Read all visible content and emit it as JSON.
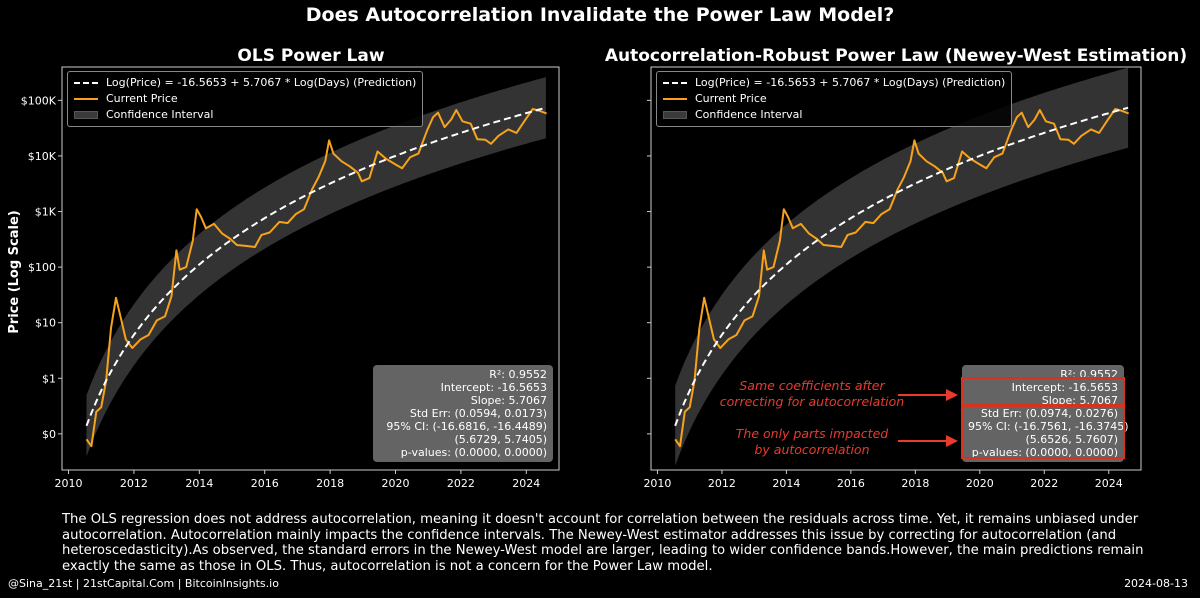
{
  "suptitle": "Does Autocorrelation Invalidate the Power Law Model?",
  "y_axis_label": "Price (Log Scale)",
  "legend": {
    "prediction": "Log(Price) = -16.5653 + 5.7067 * Log(Days) (Prediction)",
    "price": "Current Price",
    "ci": "Confidence Interval"
  },
  "colors": {
    "price": "#f7a21b",
    "prediction": "#ffffff",
    "ci": "#3c3c3c",
    "annotation": "#e83b2e"
  },
  "chart_data": [
    {
      "type": "line",
      "title": "OLS Power Law",
      "xlabel": "",
      "ylabel": "Price (Log Scale)",
      "x_ticks": [
        "2010",
        "2012",
        "2014",
        "2016",
        "2018",
        "2020",
        "2022",
        "2024"
      ],
      "y_ticks": [
        "$0",
        "$1",
        "$10",
        "$100",
        "$1K",
        "$10K",
        "$100K"
      ],
      "y_tick_values": [
        0.1,
        1,
        10,
        100,
        1000,
        10000,
        100000
      ],
      "xlim": [
        2009.8,
        2025.0
      ],
      "ylim_log10": [
        -1.65,
        5.6
      ],
      "ci_halfwidth_log10": 0.55,
      "series": [
        {
          "name": "Current Price",
          "points": [
            [
              2010.55,
              0.08
            ],
            [
              2010.7,
              0.06
            ],
            [
              2010.85,
              0.25
            ],
            [
              2011.0,
              0.3
            ],
            [
              2011.15,
              0.9
            ],
            [
              2011.3,
              8.0
            ],
            [
              2011.45,
              28
            ],
            [
              2011.6,
              12
            ],
            [
              2011.75,
              5
            ],
            [
              2011.95,
              3.5
            ],
            [
              2012.2,
              5
            ],
            [
              2012.45,
              6
            ],
            [
              2012.7,
              11
            ],
            [
              2012.95,
              13
            ],
            [
              2013.15,
              30
            ],
            [
              2013.3,
              200
            ],
            [
              2013.4,
              90
            ],
            [
              2013.6,
              100
            ],
            [
              2013.8,
              300
            ],
            [
              2013.92,
              1100
            ],
            [
              2014.05,
              800
            ],
            [
              2014.2,
              500
            ],
            [
              2014.45,
              600
            ],
            [
              2014.7,
              400
            ],
            [
              2014.95,
              320
            ],
            [
              2015.15,
              250
            ],
            [
              2015.45,
              240
            ],
            [
              2015.7,
              230
            ],
            [
              2015.9,
              380
            ],
            [
              2016.15,
              420
            ],
            [
              2016.45,
              650
            ],
            [
              2016.7,
              620
            ],
            [
              2016.95,
              900
            ],
            [
              2017.2,
              1100
            ],
            [
              2017.45,
              2500
            ],
            [
              2017.65,
              4200
            ],
            [
              2017.85,
              8000
            ],
            [
              2017.97,
              19000
            ],
            [
              2018.1,
              11000
            ],
            [
              2018.35,
              8000
            ],
            [
              2018.6,
              6500
            ],
            [
              2018.85,
              5000
            ],
            [
              2018.97,
              3500
            ],
            [
              2019.2,
              4000
            ],
            [
              2019.45,
              12000
            ],
            [
              2019.7,
              9000
            ],
            [
              2019.97,
              7200
            ],
            [
              2020.2,
              6000
            ],
            [
              2020.45,
              9500
            ],
            [
              2020.7,
              11000
            ],
            [
              2020.97,
              29000
            ],
            [
              2021.15,
              50000
            ],
            [
              2021.3,
              60000
            ],
            [
              2021.5,
              33000
            ],
            [
              2021.7,
              45000
            ],
            [
              2021.86,
              67000
            ],
            [
              2022.05,
              42000
            ],
            [
              2022.3,
              38000
            ],
            [
              2022.5,
              20000
            ],
            [
              2022.75,
              19500
            ],
            [
              2022.92,
              16500
            ],
            [
              2023.15,
              23000
            ],
            [
              2023.45,
              30000
            ],
            [
              2023.7,
              26000
            ],
            [
              2023.95,
              43000
            ],
            [
              2024.2,
              70000
            ],
            [
              2024.4,
              65000
            ],
            [
              2024.62,
              58000
            ]
          ]
        },
        {
          "name": "Prediction",
          "intercept": -16.5653,
          "slope": 5.7067,
          "genesis": 2009.0,
          "x_start": 2010.55,
          "x_end": 2024.62
        }
      ],
      "stats": {
        "r2": "R²: 0.9552",
        "intercept": "Intercept: -16.5653",
        "slope": "Slope: 5.7067",
        "std_err": "Std Err: (0.0594, 0.0173)",
        "ci95": "95% CI: (-16.6816, -16.4489)",
        "ci95b": "(5.6729, 5.7405)",
        "pvalues": "p-values: (0.0000, 0.0000)"
      }
    },
    {
      "type": "line",
      "title": "Autocorrelation-Robust Power Law (Newey-West Estimation)",
      "xlabel": "",
      "x_ticks": [
        "2010",
        "2012",
        "2014",
        "2016",
        "2018",
        "2020",
        "2022",
        "2024"
      ],
      "xlim": [
        2009.8,
        2025.0
      ],
      "ylim_log10": [
        -1.65,
        5.6
      ],
      "ci_halfwidth_log10": 0.72,
      "series": [
        {
          "name": "Current Price",
          "same_as_panel": 0
        },
        {
          "name": "Prediction",
          "intercept": -16.5653,
          "slope": 5.7067,
          "genesis": 2009.0,
          "x_start": 2010.55,
          "x_end": 2024.62
        }
      ],
      "stats": {
        "r2": "R²: 0.9552",
        "intercept": "Intercept: -16.5653",
        "slope": "Slope: 5.7067",
        "std_err": "Std Err: (0.0974, 0.0276)",
        "ci95": "95% CI: (-16.7561, -16.3745)",
        "ci95b": "(5.6526, 5.7607)",
        "pvalues": "p-values: (0.0000, 0.0000)"
      },
      "annotations": {
        "coefficients": "Same coefficients after correcting for autocorrelation",
        "coefficients_l1": "Same coefficients after",
        "coefficients_l2": "correcting for autocorrelation",
        "impacted_l1": "The only parts impacted",
        "impacted_l2": "by autocorrelation"
      }
    }
  ],
  "caption": "The OLS regression does not address autocorrelation, meaning it doesn't account for correlation between the residuals across time. Yet, it remains unbiased under autocorrelation. Autocorrelation mainly impacts the confidence intervals. The Newey-West estimator addresses this issue by correcting for autocorrelation (and heteroscedasticity).As observed, the standard errors in the Newey-West model are larger, leading to wider confidence bands.However, the main predictions remain exactly the same as those in OLS. Thus, autocorrelation is not a concern for the Power Law model.",
  "footer": {
    "left": "@Sina_21st | 21stCapital.Com | BitcoinInsights.io",
    "right": "2024-08-13"
  }
}
